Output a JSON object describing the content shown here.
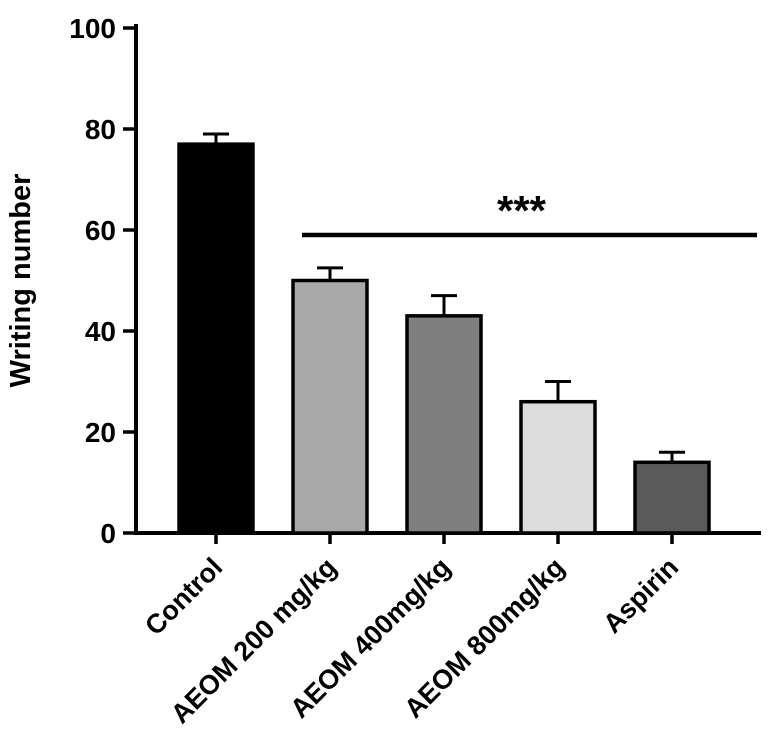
{
  "chart_data": {
    "type": "bar",
    "title": "",
    "xlabel": "",
    "ylabel": "Writing number",
    "categories": [
      "Control",
      "AEOM 200 mg/kg",
      "AEOM 400mg/kg",
      "AEOM 800mg/kg",
      "Aspirin"
    ],
    "values": [
      77,
      50,
      43,
      26,
      14
    ],
    "errors": [
      2,
      2.5,
      4,
      4,
      2
    ],
    "bar_colors": [
      "#000000",
      "#a8a8a8",
      "#7f7f7f",
      "#dcdcdc",
      "#5a5a5a"
    ],
    "bar_border_color": "#000000",
    "axis_color": "#000000",
    "ylim": [
      0,
      100
    ],
    "yticks": [
      0,
      20,
      40,
      60,
      80,
      100
    ],
    "grid": false,
    "legend": null,
    "significance": {
      "label": "***",
      "y_value": 59,
      "span_from_category": "AEOM 200 mg/kg",
      "span_to_category": "Aspirin",
      "span_from_index": 1,
      "span_to_index": 4
    }
  }
}
